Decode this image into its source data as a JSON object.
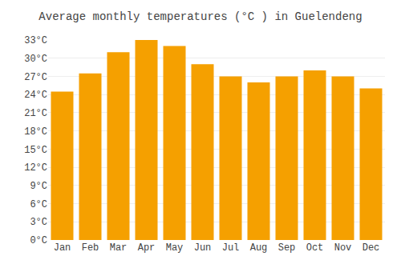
{
  "chart_data": {
    "type": "bar",
    "title": "Average monthly temperatures (°C ) in Guelendeng",
    "categories": [
      "Jan",
      "Feb",
      "Mar",
      "Apr",
      "May",
      "Jun",
      "Jul",
      "Aug",
      "Sep",
      "Oct",
      "Nov",
      "Dec"
    ],
    "values": [
      24.5,
      27.5,
      31.0,
      33.0,
      32.0,
      29.0,
      27.0,
      26.0,
      27.0,
      28.0,
      27.0,
      25.0
    ],
    "color": "#F5A000",
    "ylim": [
      0,
      33
    ],
    "yticks": [
      {
        "value": 0,
        "label": "0°C"
      },
      {
        "value": 3,
        "label": "3°C"
      },
      {
        "value": 6,
        "label": "6°C"
      },
      {
        "value": 9,
        "label": "9°C"
      },
      {
        "value": 12,
        "label": "12°C"
      },
      {
        "value": 15,
        "label": "15°C"
      },
      {
        "value": 18,
        "label": "18°C"
      },
      {
        "value": 21,
        "label": "21°C"
      },
      {
        "value": 24,
        "label": "24°C"
      },
      {
        "value": 27,
        "label": "27°C"
      },
      {
        "value": 30,
        "label": "30°C"
      },
      {
        "value": 33,
        "label": "33°C"
      }
    ],
    "grid": true
  }
}
